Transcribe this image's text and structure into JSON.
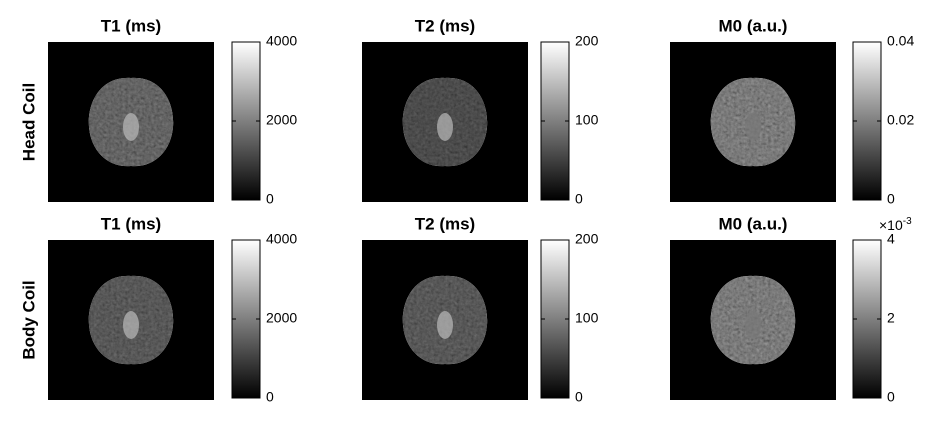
{
  "rows": [
    {
      "label": "Head Coil",
      "panels": [
        {
          "title": "T1 (ms)",
          "clim": [
            0,
            4000
          ],
          "ticks": [
            0,
            2000,
            4000
          ]
        },
        {
          "title": "T2 (ms)",
          "clim": [
            0,
            200
          ],
          "ticks": [
            0,
            100,
            200
          ]
        },
        {
          "title": "M0 (a.u.)",
          "clim": [
            0,
            0.04
          ],
          "ticks": [
            0,
            0.02,
            0.04
          ]
        }
      ]
    },
    {
      "label": "Body Coil",
      "panels": [
        {
          "title": "T1 (ms)",
          "clim": [
            0,
            4000
          ],
          "ticks": [
            0,
            2000,
            4000
          ]
        },
        {
          "title": "T2 (ms)",
          "clim": [
            0,
            200
          ],
          "ticks": [
            0,
            100,
            200
          ]
        },
        {
          "title": "M0 (a.u.)",
          "clim": [
            0,
            4
          ],
          "ticks": [
            0,
            2,
            4
          ],
          "exponent": {
            "base": "×10",
            "power": "-3"
          }
        }
      ]
    }
  ]
}
